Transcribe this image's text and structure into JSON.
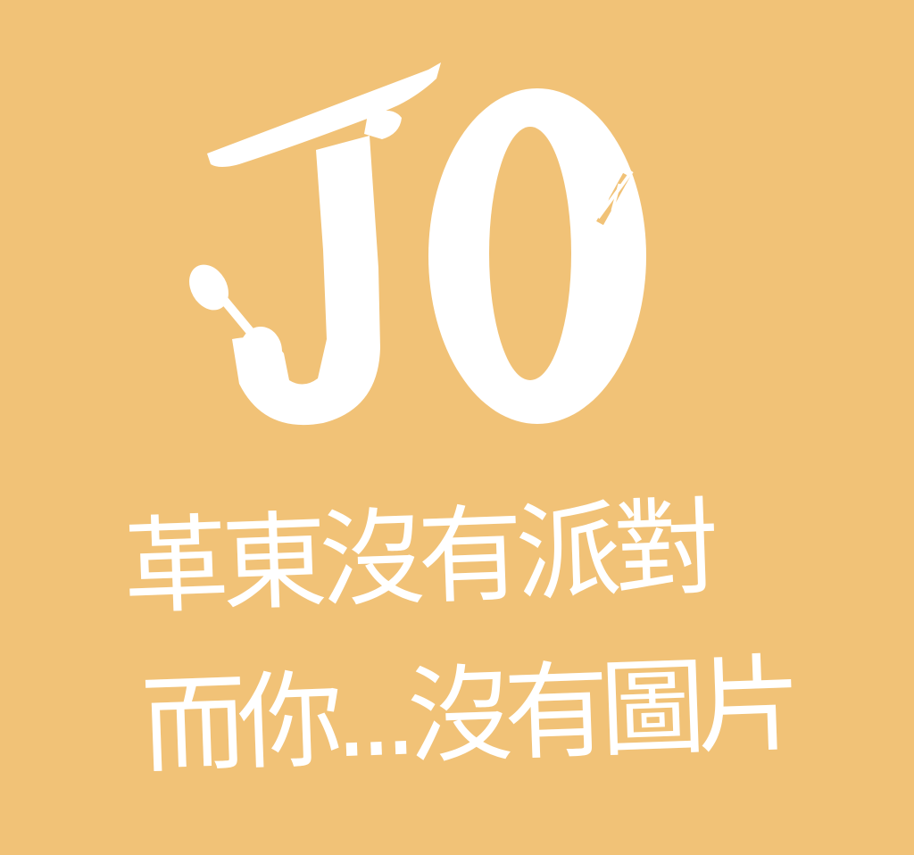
{
  "image": {
    "background_color": "#f1c277",
    "ink_color": "#ffffff",
    "logo": {
      "text": "JO",
      "description": "hand-drawn logo; the letter J ends in a spoon, a small fork pokes from the O"
    },
    "tagline": {
      "line1": "革東沒有派對",
      "line2": "而你...沒有圖片"
    }
  }
}
